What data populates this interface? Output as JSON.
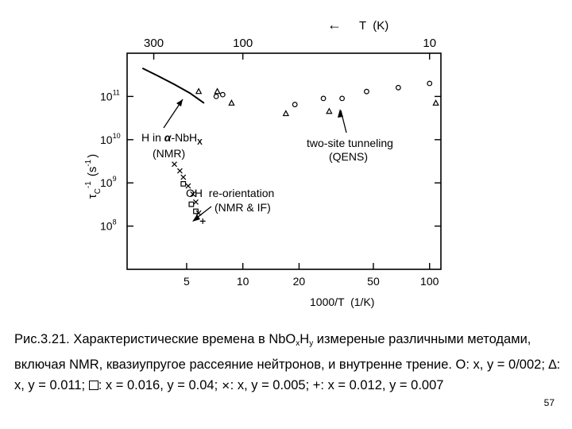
{
  "chart_data": {
    "type": "scatter",
    "title": "",
    "bottom_axis": {
      "label": "1000/T  (1/K)",
      "scale": "log",
      "range": [
        2.4,
        115
      ],
      "ticks": [
        5,
        10,
        20,
        50,
        100
      ],
      "tick_labels": [
        "5",
        "10",
        "20",
        "50",
        "100"
      ]
    },
    "top_axis": {
      "label": "T  (K)",
      "arrow": "←",
      "scale": "reciprocal",
      "ticks": [
        300,
        100,
        10
      ],
      "tick_labels": [
        "300",
        "100",
        "10"
      ]
    },
    "y_axis": {
      "label": "τ_C^-1 (s^-1)",
      "label_parts": {
        "main": "τ",
        "sub": "C",
        "sup": "-1",
        "rest": "(s",
        "rest_sup": "-1",
        "close": ")"
      },
      "scale": "log",
      "range": [
        10000000.0,
        1000000000000.0
      ],
      "ticks": [
        100000000.0,
        1000000000.0,
        10000000000.0,
        100000000000.0
      ],
      "tick_labels": [
        {
          "base": "10",
          "exp": "8"
        },
        {
          "base": "10",
          "exp": "9"
        },
        {
          "base": "10",
          "exp": "10"
        },
        {
          "base": "10",
          "exp": "11"
        }
      ]
    },
    "curve": {
      "name": "H in α-NbH_x (NMR)",
      "points": [
        [
          2.9,
          450000000000.0
        ],
        [
          3.5,
          300000000000.0
        ],
        [
          4.3,
          190000000000.0
        ],
        [
          5.2,
          120000000000.0
        ],
        [
          6.2,
          70000000000.0
        ]
      ]
    },
    "series": [
      {
        "name": "two-site tunneling (QENS)",
        "marker": "circle",
        "points": [
          [
            7.2,
            100000000000.0
          ],
          [
            7.8,
            110000000000.0
          ],
          [
            19,
            65000000000.0
          ],
          [
            27,
            90000000000.0
          ],
          [
            34,
            90000000000.0
          ],
          [
            46,
            130000000000.0
          ],
          [
            68,
            160000000000.0
          ],
          [
            100,
            200000000000.0
          ]
        ]
      },
      {
        "name": "two-site tunneling (QENS)",
        "marker": "triangle",
        "points": [
          [
            5.8,
            130000000000.0
          ],
          [
            7.3,
            130000000000.0
          ],
          [
            8.7,
            70000000000.0
          ],
          [
            17,
            40000000000.0
          ],
          [
            29,
            45000000000.0
          ],
          [
            108,
            70000000000.0
          ]
        ]
      },
      {
        "name": "OH re-orientation (NMR & IF)",
        "marker": "x",
        "points": [
          [
            4.3,
            2700000000.0
          ],
          [
            4.6,
            1900000000.0
          ],
          [
            4.8,
            1350000000.0
          ],
          [
            5.1,
            850000000.0
          ],
          [
            5.4,
            550000000.0
          ],
          [
            5.6,
            360000000.0
          ],
          [
            5.8,
            200000000.0
          ]
        ]
      },
      {
        "name": "OH re-orientation (NMR & IF)",
        "marker": "square",
        "points": [
          [
            4.8,
            950000000.0
          ],
          [
            5.3,
            320000000.0
          ],
          [
            5.6,
            220000000.0
          ]
        ]
      },
      {
        "name": "OH re-orientation (NMR & IF)",
        "marker": "plus",
        "points": [
          [
            6.1,
            130000000.0
          ]
        ]
      }
    ],
    "annotations": [
      {
        "text_main": "H in ",
        "text_greek": "α",
        "text_rest": "-NbH",
        "text_sub": "X",
        "text2": "(NMR)"
      },
      {
        "text": "two-site tunneling",
        "text2": "(QENS)"
      },
      {
        "text": "OH  re-orientation",
        "text2": "(NMR & IF)"
      }
    ]
  },
  "caption": {
    "prefix": "Рис.3.21. Характеристические времена в NbO",
    "sub_x": "x",
    "mid": "H",
    "sub_y": "y",
    "rest_line1": " измереные различными методами, включая NMR, квазиупругое рассеяние нейтронов, и внутренне трение. ",
    "legend_circle": "O: x, y = 0/002; ",
    "legend_triangle_sym": "∆",
    "legend_triangle": ": x, y = 0.011; ",
    "legend_square": ": x = 0.016, y = 0.04; ",
    "legend_cross_sym": "✕",
    "legend_cross": ": x, y = 0.005; ",
    "legend_plus": "+: x = 0.012, y = 0.007"
  },
  "page_number": "57"
}
